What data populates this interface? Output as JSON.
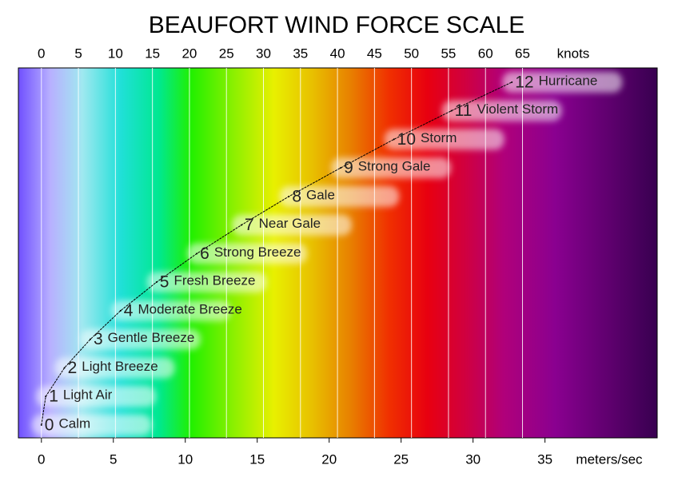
{
  "chart_data": {
    "type": "line",
    "title": "BEAUFORT WIND FORCE SCALE",
    "xlabel": "meters/sec",
    "x2label": "knots",
    "x": [
      0,
      0.3,
      1.6,
      3.4,
      5.5,
      8.0,
      10.8,
      13.9,
      17.2,
      20.8,
      24.5,
      28.5,
      32.7
    ],
    "y": [
      0,
      1,
      2,
      3,
      4,
      5,
      6,
      7,
      8,
      9,
      10,
      11,
      12
    ],
    "labels": [
      "Calm",
      "Light Air",
      "Light Breeze",
      "Gentle Breeze",
      "Moderate Breeze",
      "Fresh Breeze",
      "Strong Breeze",
      "Near Gale",
      "Gale",
      "Strong Gale",
      "Storm",
      "Violent Storm",
      "Hurricane"
    ],
    "xlim": [
      -1.6,
      42.8
    ],
    "xticks": [
      0,
      5,
      10,
      15,
      20,
      25,
      30,
      35
    ],
    "x2lim": [
      -3.11,
      83.2
    ],
    "x2ticks": [
      0,
      5,
      10,
      15,
      20,
      25,
      30,
      35,
      40,
      45,
      50,
      55,
      60,
      65
    ],
    "ylim": [
      -0.45,
      12.5
    ],
    "grid": true,
    "color": "#000000"
  }
}
